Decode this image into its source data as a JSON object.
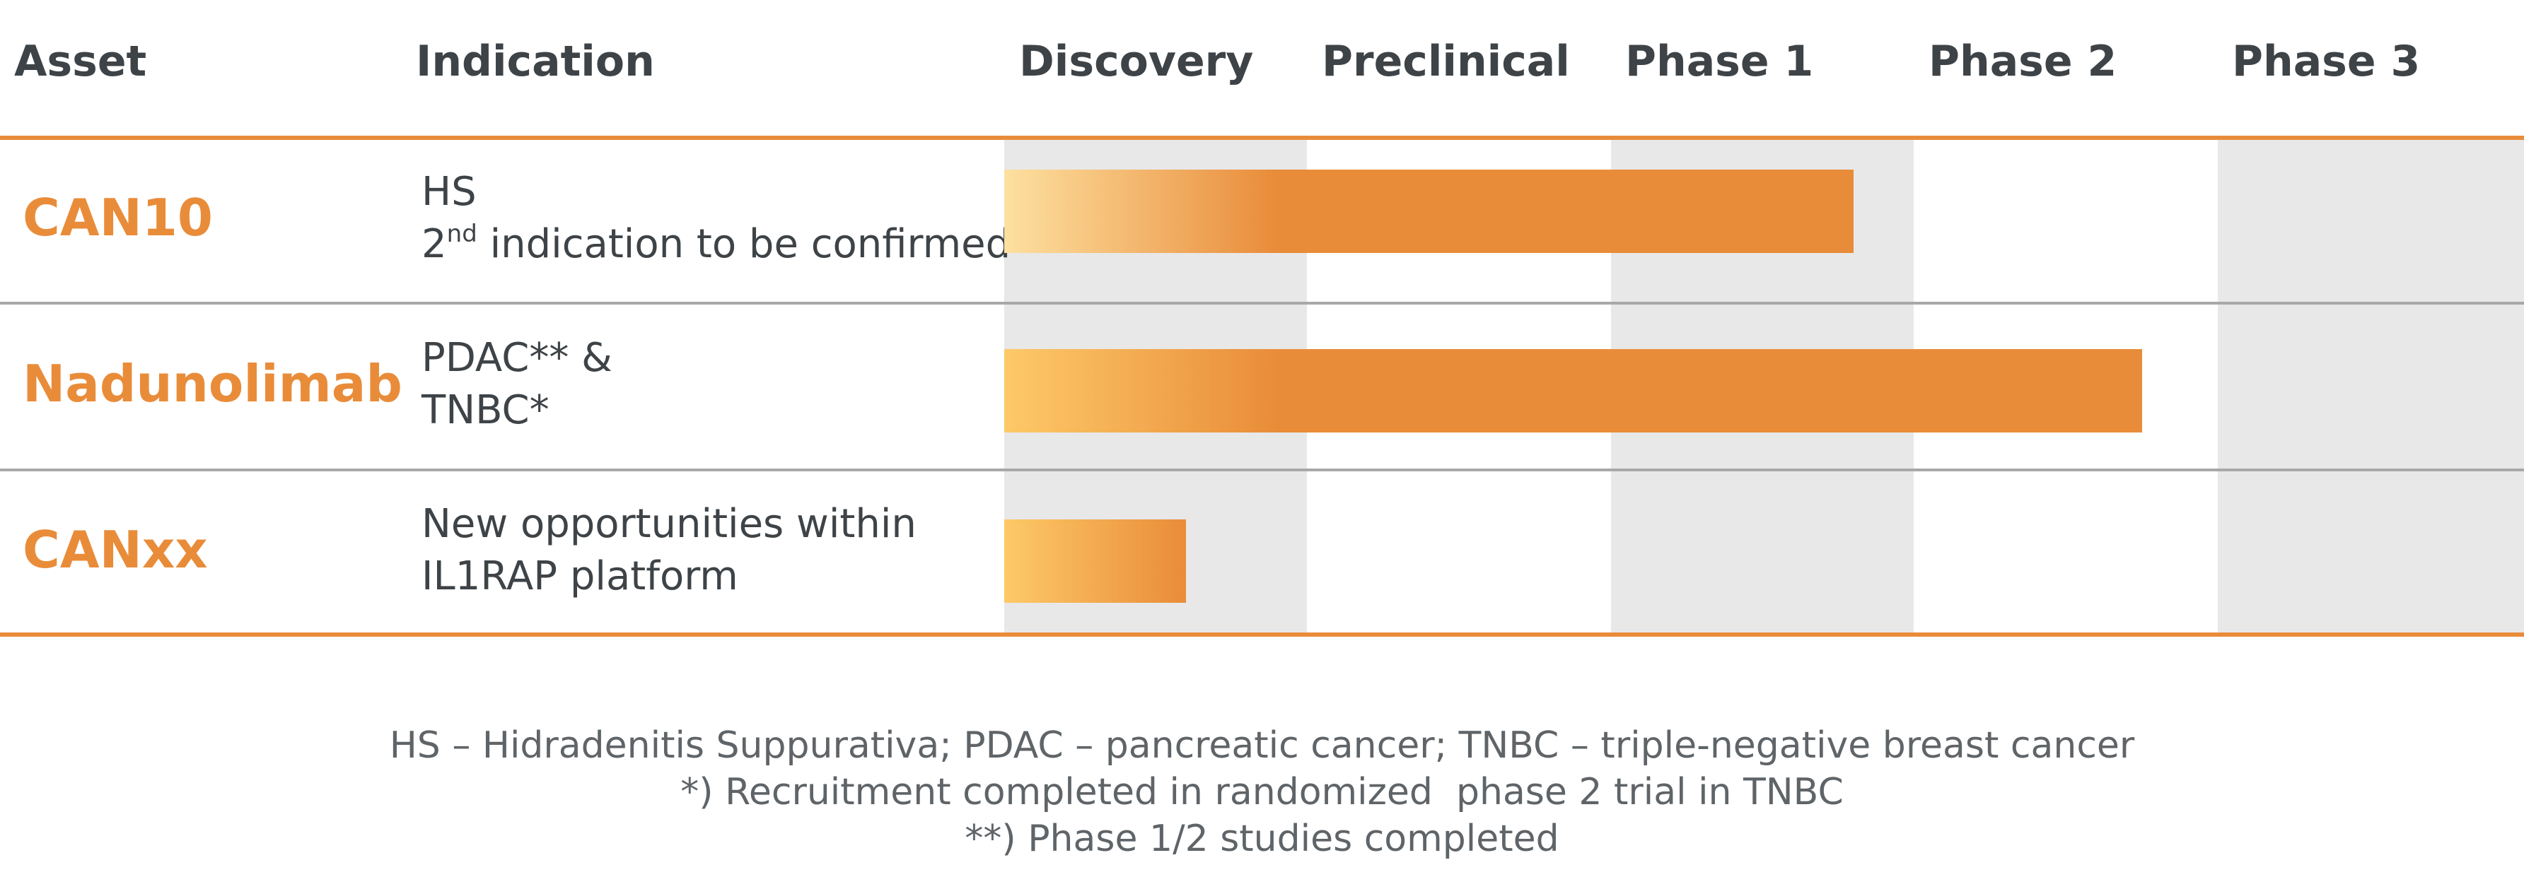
{
  "chart_data": {
    "type": "table",
    "columns": [
      "Asset",
      "Indication",
      "Discovery",
      "Preclinical",
      "Phase 1",
      "Phase 2",
      "Phase 3"
    ],
    "phases": [
      "Discovery",
      "Preclinical",
      "Phase 1",
      "Phase 2",
      "Phase 3"
    ],
    "rows": [
      {
        "asset": "CAN10",
        "indication_line1": "HS",
        "indication_line2_num": "2",
        "indication_line2_sup": "nd",
        "indication_line2_rest": " indication to be confirmed",
        "progress_phases": 2.8,
        "bar_gradient": [
          "#fde0a0",
          "#e98c3a"
        ]
      },
      {
        "asset": "Nadunolimab",
        "indication_line1": "PDAC** &",
        "indication_line2_rest": "TNBC*",
        "progress_phases": 3.75,
        "bar_gradient": [
          "#fdc968",
          "#e98c3a"
        ]
      },
      {
        "asset": "CANxx",
        "indication_line1": "New opportunities within",
        "indication_line2_rest": "IL1RAP platform",
        "progress_phases": 0.6,
        "bar_gradient": [
          "#fdc968",
          "#e98c3a"
        ]
      }
    ],
    "footnotes": [
      "HS – Hidradenitis Suppurativa; PDAC – pancreatic cancer; TNBC – triple-negative breast cancer",
      "*) Recruitment completed in randomized  phase 2 trial in TNBC",
      "**) Phase 1/2 studies completed"
    ]
  },
  "colors": {
    "accent": "#e98c3a",
    "header_text": "#3e4347",
    "shade": "#e8e8e8",
    "divider": "#a8a8a8"
  }
}
